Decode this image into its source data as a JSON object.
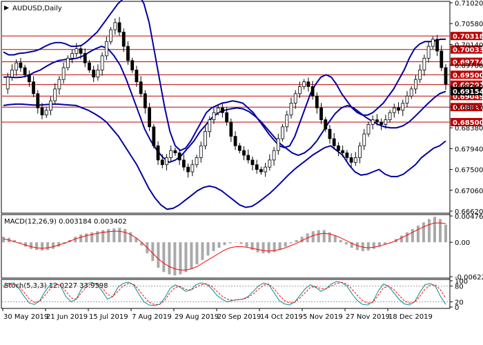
{
  "chart_data": {
    "type": "candlestick",
    "symbol_title": "AUDUSD,Daily",
    "price_axis_ticks": [
      "0.71020",
      "0.70580",
      "0.70140",
      "0.69700",
      "0.69260",
      "0.68820",
      "0.68380",
      "0.67940",
      "0.67500",
      "0.67060",
      "0.66620"
    ],
    "resistance_levels": [
      {
        "label": "0.70318",
        "value": 0.70318
      },
      {
        "label": "0.70033",
        "value": 0.70033
      },
      {
        "label": "0.69774",
        "value": 0.69774
      },
      {
        "label": "0.69500",
        "value": 0.695
      },
      {
        "label": "0.69291",
        "value": 0.69291
      },
      {
        "label": "0.69049",
        "value": 0.69049
      },
      {
        "label": "0.68817",
        "value": 0.68817
      },
      {
        "label": "0.68500",
        "value": 0.685
      }
    ],
    "current_price": {
      "label": "0.69154",
      "value": 0.69154
    },
    "x_axis_labels": [
      "30 May 2019",
      "21 Jun 2019",
      "15 Jul 2019",
      "7 Aug 2019",
      "29 Aug 2019",
      "20 Sep 2019",
      "14 Oct 2019",
      "5 Nov 2019",
      "27 Nov 2019",
      "18 Dec 2019"
    ],
    "level_color": "#c00000",
    "band_color": "#0000a0",
    "candle_color": "#000000",
    "close_path": [
      0.692,
      0.6945,
      0.696,
      0.6975,
      0.6965,
      0.695,
      0.6935,
      0.691,
      0.688,
      0.6865,
      0.6875,
      0.6895,
      0.692,
      0.694,
      0.6965,
      0.6985,
      0.6995,
      0.7005,
      0.6995,
      0.6975,
      0.696,
      0.6945,
      0.696,
      0.699,
      0.702,
      0.7045,
      0.706,
      0.704,
      0.701,
      0.698,
      0.696,
      0.6935,
      0.691,
      0.688,
      0.684,
      0.68,
      0.677,
      0.676,
      0.6775,
      0.679,
      0.6785,
      0.677,
      0.6755,
      0.6745,
      0.676,
      0.6775,
      0.68,
      0.683,
      0.6855,
      0.687,
      0.688,
      0.687,
      0.685,
      0.682,
      0.68,
      0.679,
      0.678,
      0.677,
      0.676,
      0.675,
      0.6745,
      0.6755,
      0.677,
      0.679,
      0.6815,
      0.684,
      0.6865,
      0.689,
      0.691,
      0.6925,
      0.6935,
      0.6925,
      0.6905,
      0.688,
      0.6855,
      0.6835,
      0.6815,
      0.68,
      0.679,
      0.6785,
      0.6775,
      0.6765,
      0.6775,
      0.68,
      0.6825,
      0.6845,
      0.6855,
      0.685,
      0.6845,
      0.6855,
      0.687,
      0.688,
      0.6875,
      0.689,
      0.6905,
      0.692,
      0.694,
      0.696,
      0.6985,
      0.701,
      0.7025,
      0.7,
      0.6965,
      0.693
    ],
    "upper_band_path": [
      0.6998,
      0.6992,
      0.6992,
      0.6995,
      0.6996,
      0.6998,
      0.7,
      0.7004,
      0.701,
      0.7015,
      0.7018,
      0.7018,
      0.7015,
      0.701,
      0.701,
      0.7012,
      0.702,
      0.703,
      0.704,
      0.7055,
      0.707,
      0.7085,
      0.71,
      0.711,
      0.712,
      0.7125,
      0.712,
      0.71,
      0.706,
      0.7,
      0.694,
      0.688,
      0.683,
      0.68,
      0.679,
      0.6795,
      0.681,
      0.683,
      0.685,
      0.687,
      0.688,
      0.6885,
      0.689,
      0.6892,
      0.6895,
      0.6893,
      0.689,
      0.688,
      0.687,
      0.6855,
      0.684,
      0.6825,
      0.6812,
      0.68,
      0.6796,
      0.68,
      0.682,
      0.685,
      0.688,
      0.691,
      0.693,
      0.6945,
      0.695,
      0.6945,
      0.693,
      0.691,
      0.6895,
      0.688,
      0.687,
      0.6865,
      0.6865,
      0.687,
      0.688,
      0.689,
      0.6905,
      0.692,
      0.694,
      0.696,
      0.6985,
      0.7005,
      0.7015,
      0.702,
      0.702,
      0.7022,
      0.7025,
      0.7025
    ],
    "middle_band_path": [
      0.6945,
      0.6945,
      0.6944,
      0.6945,
      0.6948,
      0.6955,
      0.696,
      0.6968,
      0.6975,
      0.698,
      0.6982,
      0.6983,
      0.6985,
      0.699,
      0.6998,
      0.7005,
      0.701,
      0.7005,
      0.699,
      0.697,
      0.694,
      0.6905,
      0.687,
      0.6835,
      0.681,
      0.679,
      0.6775,
      0.6765,
      0.677,
      0.678,
      0.6795,
      0.681,
      0.683,
      0.6845,
      0.686,
      0.687,
      0.6875,
      0.6878,
      0.688,
      0.6878,
      0.6872,
      0.6862,
      0.685,
      0.6835,
      0.682,
      0.6805,
      0.6795,
      0.6785,
      0.678,
      0.6785,
      0.6795,
      0.681,
      0.683,
      0.685,
      0.6868,
      0.688,
      0.6885,
      0.688,
      0.687,
      0.686,
      0.6852,
      0.6845,
      0.684,
      0.6838,
      0.6838,
      0.6842,
      0.685,
      0.6862,
      0.6875,
      0.6888,
      0.69,
      0.691,
      0.6915
    ],
    "lower_band_path": [
      0.6885,
      0.6887,
      0.6888,
      0.6888,
      0.6887,
      0.6886,
      0.6886,
      0.6887,
      0.6888,
      0.6888,
      0.6887,
      0.6886,
      0.6885,
      0.688,
      0.6875,
      0.6868,
      0.686,
      0.685,
      0.6835,
      0.682,
      0.68,
      0.678,
      0.676,
      0.6735,
      0.671,
      0.669,
      0.6675,
      0.6666,
      0.6668,
      0.6675,
      0.6685,
      0.6695,
      0.6705,
      0.6712,
      0.6715,
      0.6712,
      0.6705,
      0.6695,
      0.6685,
      0.6675,
      0.667,
      0.6672,
      0.668,
      0.669,
      0.67,
      0.6712,
      0.6725,
      0.6738,
      0.675,
      0.676,
      0.677,
      0.678,
      0.6788,
      0.6796,
      0.68,
      0.679,
      0.678,
      0.676,
      0.6745,
      0.6738,
      0.674,
      0.6745,
      0.675,
      0.674,
      0.6735,
      0.6735,
      0.674,
      0.675,
      0.676,
      0.6775,
      0.6785,
      0.6795,
      0.68,
      0.681
    ],
    "macd": {
      "label": "MACD(12,26,9) 0.003184 0.003402",
      "axis_ticks": [
        "0.00476",
        "0.00",
        "-0.006229"
      ],
      "hist_color": "#a9a9a9",
      "signal_color": "#ff0000",
      "histogram": [
        0.001,
        0.0008,
        0.0004,
        -0.0002,
        -0.0008,
        -0.0012,
        -0.0014,
        -0.0015,
        -0.0014,
        -0.0012,
        -0.0008,
        -0.0003,
        0.0004,
        0.001,
        0.0014,
        0.0016,
        0.0018,
        0.002,
        0.0022,
        0.0024,
        0.0025,
        0.0026,
        0.0024,
        0.0018,
        0.0008,
        -0.0006,
        -0.002,
        -0.0034,
        -0.0046,
        -0.0054,
        -0.0058,
        -0.006,
        -0.0058,
        -0.0054,
        -0.0048,
        -0.004,
        -0.0032,
        -0.0024,
        -0.0016,
        -0.001,
        -0.0005,
        -0.0002,
        0.0,
        -0.0003,
        -0.0008,
        -0.0014,
        -0.0018,
        -0.002,
        -0.002,
        -0.0018,
        -0.0014,
        -0.0008,
        -0.0002,
        0.0004,
        0.001,
        0.0016,
        0.002,
        0.0022,
        0.0022,
        0.0018,
        0.0012,
        0.0004,
        -0.0004,
        -0.001,
        -0.0014,
        -0.0016,
        -0.0015,
        -0.0012,
        -0.0008,
        -0.0004,
        0.0,
        0.0006,
        0.0012,
        0.0018,
        0.0024,
        0.003,
        0.0036,
        0.0042,
        0.0046,
        0.0042,
        0.0032
      ],
      "signal": [
        0.0006,
        0.0004,
        0.0001,
        -0.0002,
        -0.0005,
        -0.0008,
        -0.001,
        -0.0011,
        -0.001,
        -0.0008,
        -0.0005,
        -0.0002,
        0.0002,
        0.0006,
        0.0009,
        0.0012,
        0.0014,
        0.0016,
        0.0018,
        0.0019,
        0.002,
        0.002,
        0.0018,
        0.0014,
        0.0008,
        0.0,
        -0.001,
        -0.002,
        -0.003,
        -0.0038,
        -0.0044,
        -0.0048,
        -0.005,
        -0.005,
        -0.0048,
        -0.0044,
        -0.0038,
        -0.0032,
        -0.0026,
        -0.002,
        -0.0014,
        -0.001,
        -0.0008,
        -0.0008,
        -0.0009,
        -0.0011,
        -0.0013,
        -0.0015,
        -0.0016,
        -0.0015,
        -0.0013,
        -0.001,
        -0.0006,
        -0.0002,
        0.0003,
        0.0008,
        0.0012,
        0.0015,
        0.0016,
        0.0015,
        0.0012,
        0.0008,
        0.0003,
        -0.0002,
        -0.0006,
        -0.0009,
        -0.001,
        -0.0009,
        -0.0007,
        -0.0004,
        -0.0001,
        0.0003,
        0.0008,
        0.0013,
        0.0018,
        0.0023,
        0.0028,
        0.0032,
        0.0035,
        0.0035,
        0.0034
      ]
    },
    "stoch": {
      "label": "Stoch(5,3,3) 12.0227 33.9398",
      "axis_ticks": [
        "100",
        "80",
        "20",
        "0"
      ],
      "main_color": "#008b8b",
      "signal_color": "#ff0000",
      "main": [
        80,
        90,
        92,
        70,
        40,
        15,
        10,
        25,
        60,
        85,
        92,
        80,
        40,
        20,
        30,
        70,
        88,
        94,
        85,
        60,
        30,
        40,
        75,
        90,
        95,
        85,
        50,
        20,
        8,
        6,
        10,
        35,
        70,
        85,
        75,
        60,
        65,
        85,
        92,
        88,
        70,
        45,
        30,
        20,
        25,
        28,
        30,
        40,
        60,
        80,
        92,
        85,
        55,
        25,
        12,
        8,
        20,
        45,
        70,
        85,
        75,
        60,
        70,
        88,
        97,
        94,
        80,
        50,
        25,
        10,
        8,
        20,
        60,
        88,
        80,
        55,
        30,
        12,
        8,
        20,
        55,
        85,
        90,
        80,
        40,
        10
      ],
      "signal": [
        75,
        85,
        88,
        78,
        55,
        30,
        18,
        22,
        45,
        70,
        86,
        85,
        60,
        35,
        30,
        55,
        78,
        90,
        88,
        72,
        48,
        40,
        60,
        80,
        90,
        88,
        66,
        40,
        18,
        10,
        10,
        25,
        55,
        75,
        78,
        68,
        65,
        75,
        85,
        88,
        80,
        60,
        42,
        30,
        26,
        28,
        30,
        36,
        50,
        68,
        84,
        88,
        70,
        45,
        25,
        15,
        18,
        35,
        55,
        75,
        78,
        70,
        70,
        80,
        90,
        94,
        88,
        68,
        45,
        25,
        15,
        18,
        45,
        72,
        80,
        68,
        45,
        25,
        15,
        18,
        40,
        68,
        84,
        85,
        65,
        34
      ]
    }
  }
}
